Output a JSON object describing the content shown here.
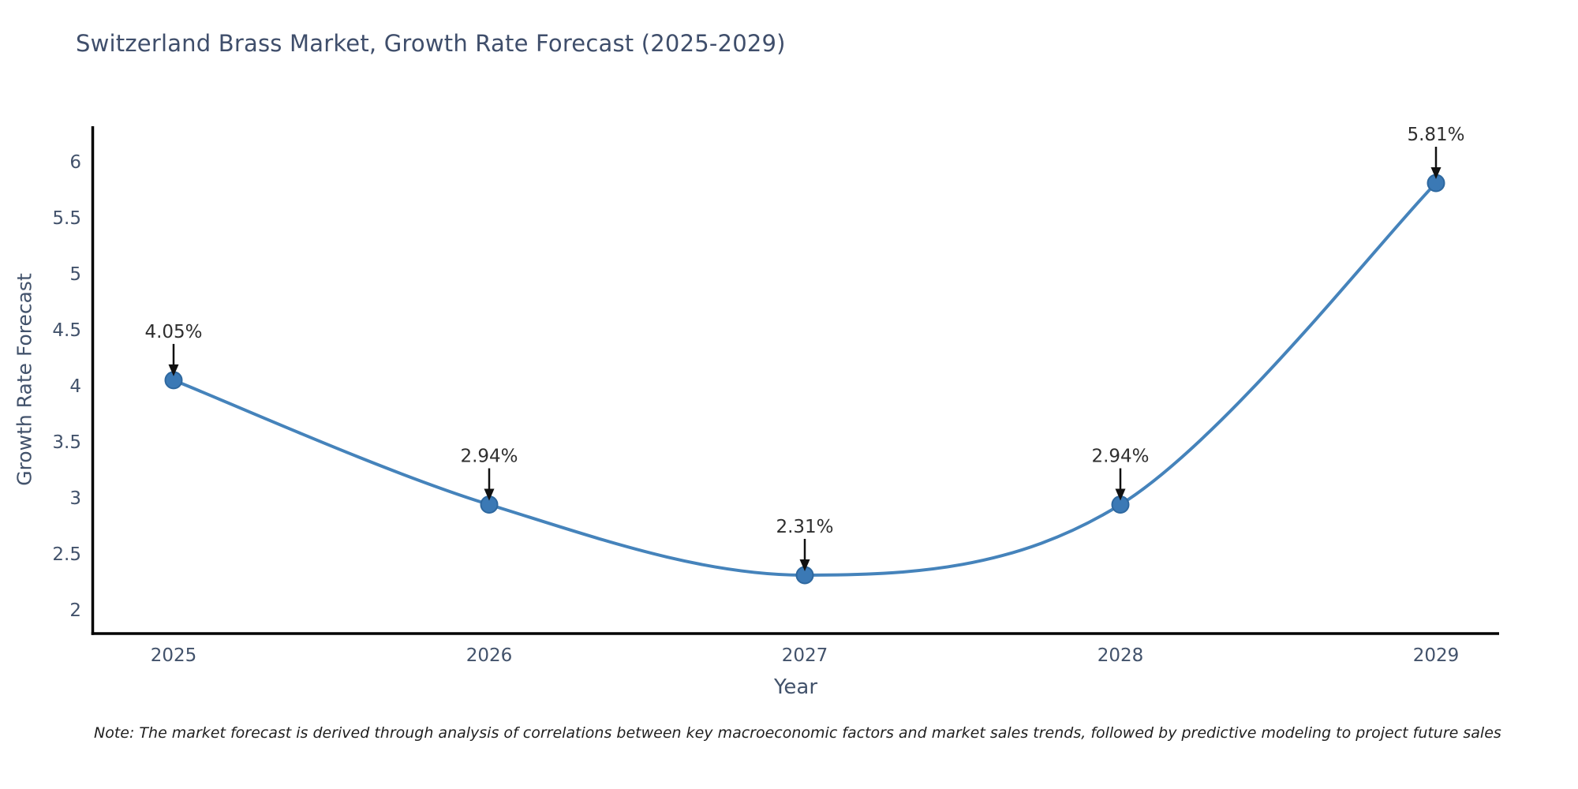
{
  "header": {
    "title": "Switzerland Brass Market, Growth Rate Forecast (2025-2029)"
  },
  "chart_data": {
    "type": "line",
    "title": "Switzerland Brass Market, Growth Rate Forecast (2025-2029)",
    "xlabel": "Year",
    "ylabel": "Growth Rate Forecast",
    "x": [
      2025,
      2026,
      2027,
      2028,
      2029
    ],
    "values": [
      4.05,
      2.94,
      2.31,
      2.94,
      5.81
    ],
    "point_labels": [
      "4.05%",
      "2.94%",
      "2.31%",
      "2.94%",
      "5.81%"
    ],
    "y_ticks": [
      2,
      2.5,
      3,
      3.5,
      4,
      4.5,
      5,
      5.5,
      6
    ],
    "ylim": [
      1.79,
      6.32
    ],
    "grid": false,
    "legend": "none",
    "annotation_style": "down-arrow",
    "colors": {
      "line": "#4583bb",
      "marker_fill": "#3b79b5",
      "marker_edge": "#2e689f",
      "axis": "#000000",
      "tick_label": "#42526b",
      "annotation_text": "#2e2e2e",
      "arrow": "#111111",
      "title": "#3f4e6b"
    }
  },
  "note": {
    "text": "Note: The market forecast is derived through analysis of correlations between key macroeconomic factors and market sales trends, followed by predictive modeling to project future sales"
  }
}
